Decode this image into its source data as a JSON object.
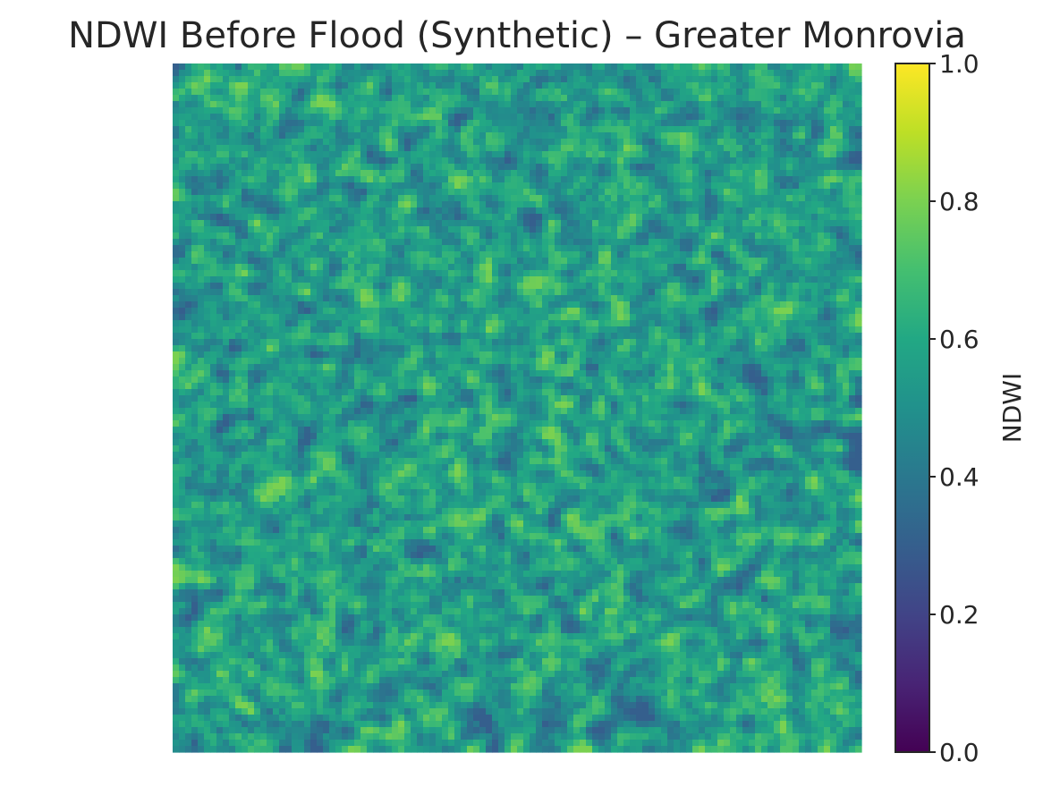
{
  "chart_data": {
    "type": "heatmap",
    "title": "NDWI Before Flood (Synthetic) – Greater Monrovia",
    "colormap": "viridis",
    "axes_visible": false,
    "value_range": [
      0.0,
      1.0
    ],
    "typical_value_range": [
      0.3,
      0.8
    ],
    "colorbar": {
      "label": "NDWI",
      "ticks": [
        0.0,
        0.2,
        0.4,
        0.6,
        0.8,
        1.0
      ],
      "tick_labels": [
        "0.0",
        "0.2",
        "0.4",
        "0.6",
        "0.8",
        "1.0"
      ],
      "placement": "right"
    }
  }
}
